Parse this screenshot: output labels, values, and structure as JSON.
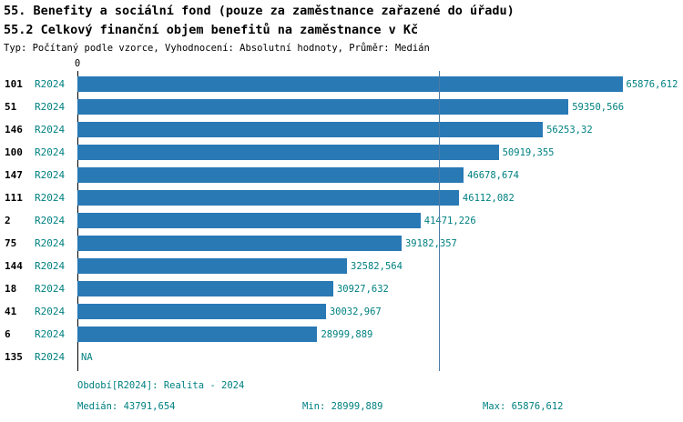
{
  "title1": "55. Benefity a sociální fond (pouze za zaměstnance zařazené do úřadu)",
  "title2": "55.2 Celkový finanční objem benefitů na zaměstnance v Kč",
  "subtitle": "Typ: Počítaný podle vzorce, Vyhodnocení: Absolutní hodnoty, Průměr: Medián",
  "axis": {
    "zero_label": "0"
  },
  "chart_data": {
    "type": "bar",
    "orientation": "horizontal",
    "series_label": "R2024",
    "categories": [
      "101",
      "51",
      "146",
      "100",
      "147",
      "111",
      "2",
      "75",
      "144",
      "18",
      "41",
      "6",
      "135"
    ],
    "values": [
      65876.612,
      59350.566,
      56253.32,
      50919.355,
      46678.674,
      46112.082,
      41471.226,
      39182.357,
      32582.564,
      30927.632,
      30032.967,
      28999.889,
      null
    ],
    "value_labels": [
      "65876,612",
      "59350,566",
      "56253,32",
      "50919,355",
      "46678,674",
      "46112,082",
      "41471,226",
      "39182,357",
      "32582,564",
      "30927,632",
      "30032,967",
      "28999,889",
      "NA"
    ],
    "xlim": [
      0,
      72000
    ],
    "median_value": 43791.654,
    "grid": false,
    "legend": "none",
    "bar_color": "#2979b5",
    "label_color": "#008080",
    "median_line_color": "#4a7ba6"
  },
  "footer": {
    "period": "Období[R2024]: Realita - 2024",
    "median": "Medián: 43791,654",
    "min": "Min: 28999,889",
    "max": "Max: 65876,612"
  }
}
